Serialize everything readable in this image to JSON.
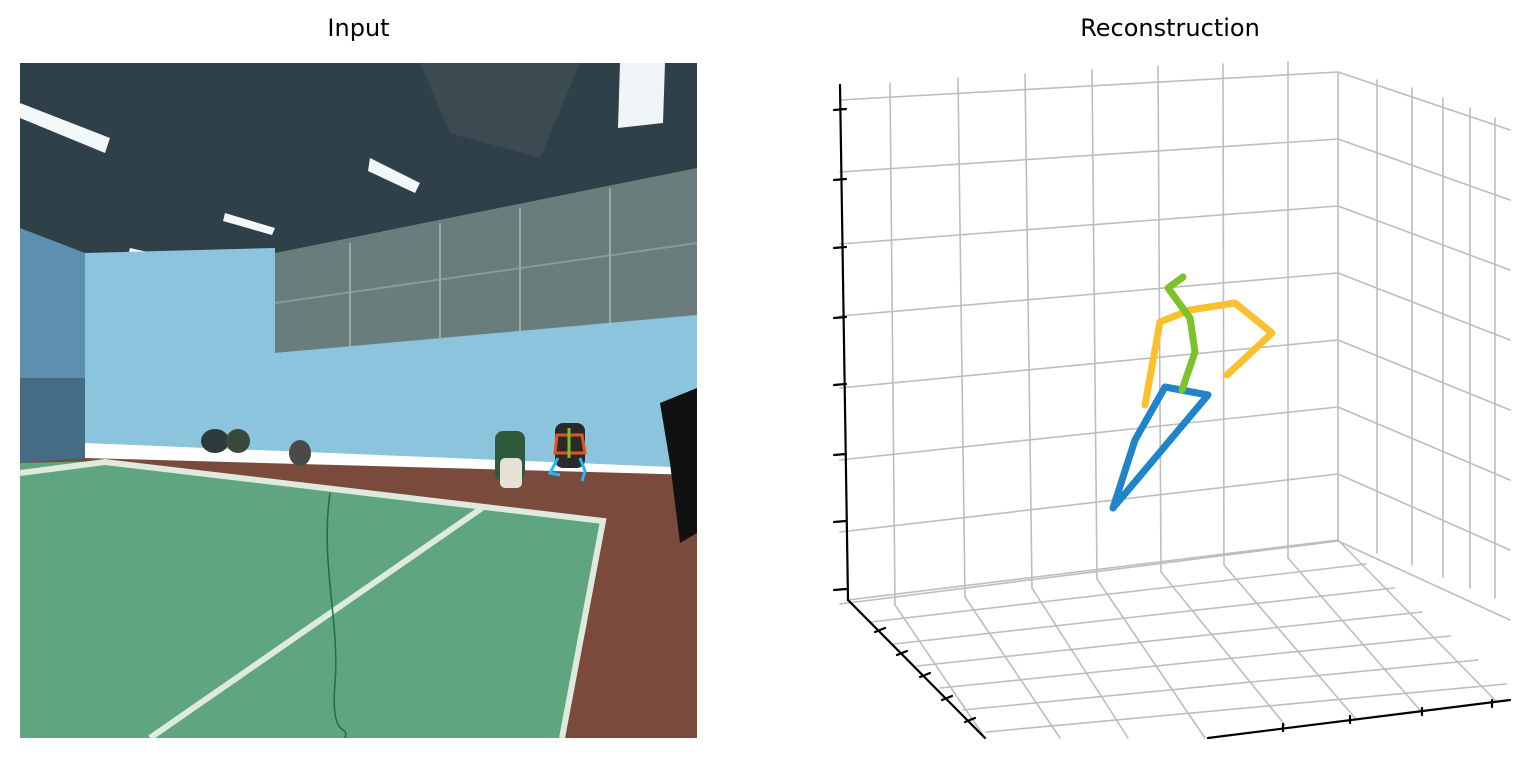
{
  "panels": {
    "left_title": "Input",
    "right_title": "Reconstruction"
  },
  "colors": {
    "court_green": "#5fa57f",
    "court_red": "#7a4a3c",
    "wall_blue": "#7db8d6",
    "ceiling_dark": "#2a3a40",
    "grid": "#bdbdbd",
    "axis": "#000000",
    "right_leg": "#1f85c8",
    "left_arm": "#fbc02d",
    "spine": "#7cc22b",
    "overlay_torso": "#e0571b",
    "overlay_legs": "#29b6f6",
    "overlay_spine": "#7cc22b"
  },
  "chart_data": {
    "type": "3d-skeleton",
    "grid": true,
    "skeleton_segments": [
      {
        "part": "leg",
        "color": "right_leg"
      },
      {
        "part": "arm",
        "color": "left_arm"
      },
      {
        "part": "spine",
        "color": "spine"
      }
    ]
  }
}
